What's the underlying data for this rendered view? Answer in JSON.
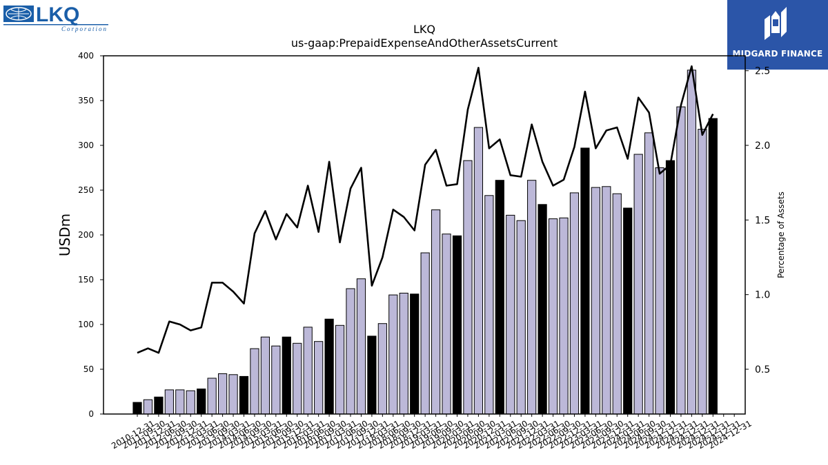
{
  "branding": {
    "company_logo_text": "LKQ",
    "company_logo_subtext": "Corporation",
    "publisher_name": "MIDGARD FINANCE"
  },
  "colors": {
    "bar_annual": "#000000",
    "bar_quarter": "#bcb8d8",
    "line": "#000000",
    "badge_bg": "#2b55a8",
    "logo_blue": "#1a5ea8"
  },
  "chart_data": {
    "type": "bar",
    "title": "LKQ",
    "subtitle": "us-gaap:PrepaidExpenseAndOtherAssetsCurrent",
    "ylabel": "USDm",
    "y2label": "Percentage of Assets",
    "ylim": [
      0,
      400
    ],
    "y2lim": [
      0.2,
      2.6
    ],
    "yticks": [
      0,
      50,
      100,
      150,
      200,
      250,
      300,
      350,
      400
    ],
    "y2ticks": [
      0.5,
      1.0,
      1.5,
      2.0,
      2.5
    ],
    "categories": [
      "2010-12-31",
      "2011-03-31",
      "2011-06-30",
      "2011-09-30",
      "2011-12-31",
      "2012-03-31",
      "2012-06-30",
      "2012-09-30",
      "2012-12-31",
      "2013-03-31",
      "2013-06-30",
      "2013-09-30",
      "2013-12-31",
      "2014-03-31",
      "2014-06-30",
      "2014-09-30",
      "2014-12-31",
      "2015-03-31",
      "2015-06-30",
      "2015-09-30",
      "2015-12-31",
      "2016-03-31",
      "2016-06-30",
      "2016-09-30",
      "2016-12-31",
      "2017-03-31",
      "2017-06-30",
      "2017-09-30",
      "2017-12-31",
      "2018-03-31",
      "2018-06-30",
      "2018-09-30",
      "2018-12-31",
      "2019-03-31",
      "2019-06-30",
      "2019-09-30",
      "2019-12-31",
      "2020-03-31",
      "2020-06-30",
      "2020-09-30",
      "2020-12-31",
      "2021-03-31",
      "2021-06-30",
      "2021-09-30",
      "2021-12-31",
      "2022-03-31",
      "2022-06-30",
      "2022-09-30",
      "2022-12-31",
      "2023-03-31",
      "2023-06-30",
      "2023-09-30",
      "2023-12-31",
      "2024-03-31",
      "2024-06-30",
      "2024-09-30",
      "2024-12-31"
    ],
    "xtick_labels": [
      "2010-12-31",
      "2011-09-30",
      "2011-12-31",
      "2012-06-30",
      "2012-09-30",
      "2012-12-31",
      "2013-03-31",
      "2013-06-30",
      "2013-09-30",
      "2014-03-31",
      "2014-06-30",
      "2014-09-30",
      "2015-03-31",
      "2015-06-30",
      "2015-09-30",
      "2015-12-31",
      "2016-03-31",
      "2016-06-30",
      "2016-09-30",
      "2017-03-31",
      "2017-06-30",
      "2017-09-30",
      "2017-12-31",
      "2018-03-31",
      "2018-06-30",
      "2018-09-30",
      "2018-12-31",
      "2019-03-31",
      "2019-06-30",
      "2019-09-30",
      "2020-03-31",
      "2020-06-30",
      "2020-09-30",
      "2020-12-31",
      "2021-03-31",
      "2021-06-30",
      "2021-09-30",
      "2021-12-31",
      "2022-03-31",
      "2022-06-30",
      "2022-09-30",
      "2022-12-31",
      "2023-03-31",
      "2023-06-30",
      "2023-09-30",
      "2023-12-31",
      "2024-03-31",
      "2024-06-30",
      "2024-09-30",
      "2024-12-31",
      "2024-12-31",
      "2024-12-31",
      "2024-12-31",
      "2024-12-31",
      "2024-12-31",
      "2024-12-31",
      "2024-12-31"
    ],
    "annual": [
      true,
      false,
      true,
      false,
      false,
      false,
      true,
      false,
      false,
      false,
      true,
      false,
      false,
      false,
      true,
      false,
      false,
      false,
      true,
      false,
      false,
      false,
      true,
      false,
      false,
      false,
      true,
      false,
      false,
      false,
      true,
      false,
      false,
      false,
      true,
      false,
      false,
      false,
      true,
      false,
      false,
      false,
      true,
      false,
      false,
      false,
      true,
      false,
      false,
      false,
      true,
      false,
      false,
      false,
      true,
      false,
      true
    ],
    "series": [
      {
        "name": "",
        "type": "bar",
        "axis": "left",
        "values": [
          13,
          16,
          19,
          27,
          27,
          26,
          28,
          40,
          45,
          44,
          42,
          73,
          86,
          76,
          86,
          79,
          97,
          81,
          106,
          99,
          140,
          151,
          87,
          101,
          133,
          135,
          134,
          180,
          228,
          201,
          199,
          283,
          320,
          244,
          261,
          222,
          216,
          261,
          234,
          218,
          219,
          247,
          297,
          253,
          254,
          246,
          230,
          290,
          314,
          275,
          283,
          343,
          384,
          318,
          330,
          0,
          0
        ]
      },
      {
        "name": "",
        "type": "line",
        "axis": "right",
        "values": [
          0.61,
          0.64,
          0.61,
          0.82,
          0.8,
          0.76,
          0.78,
          1.08,
          1.08,
          1.02,
          0.94,
          1.41,
          1.56,
          1.37,
          1.54,
          1.45,
          1.73,
          1.42,
          1.89,
          1.35,
          1.71,
          1.85,
          1.06,
          1.25,
          1.57,
          1.52,
          1.43,
          1.87,
          1.97,
          1.73,
          1.74,
          2.24,
          2.52,
          1.98,
          2.04,
          1.8,
          1.79,
          2.14,
          1.89,
          1.73,
          1.77,
          1.99,
          2.36,
          1.98,
          2.1,
          2.12,
          1.91,
          2.32,
          2.22,
          1.81,
          1.87,
          2.27,
          2.53,
          2.07,
          2.21,
          null,
          null
        ]
      }
    ]
  }
}
